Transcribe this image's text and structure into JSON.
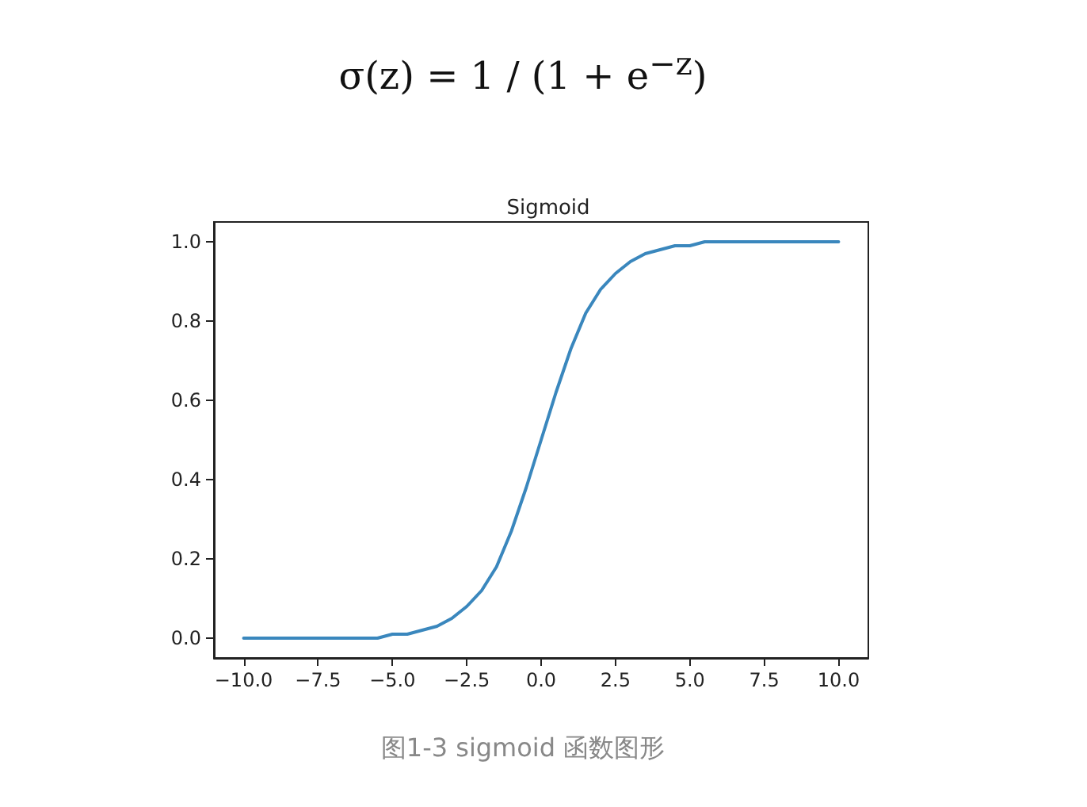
{
  "chart_data": {
    "type": "line",
    "title": "Sigmoid",
    "color": "#3a87bd",
    "marker": "none",
    "line_style": "solid",
    "grid": false,
    "x": [
      -10,
      -9.5,
      -9,
      -8.5,
      -8,
      -7.5,
      -7,
      -6.5,
      -6,
      -5.5,
      -5,
      -4.5,
      -4,
      -3.5,
      -3,
      -2.5,
      -2,
      -1.5,
      -1,
      -0.5,
      0,
      0.5,
      1,
      1.5,
      2,
      2.5,
      3,
      3.5,
      4,
      4.5,
      5,
      5.5,
      6,
      6.5,
      7,
      7.5,
      8,
      8.5,
      9,
      9.5,
      10
    ],
    "values": [
      0,
      0,
      0,
      0,
      0,
      0,
      0,
      0,
      0,
      0,
      0.01,
      0.01,
      0.02,
      0.03,
      0.05,
      0.08,
      0.12,
      0.18,
      0.27,
      0.38,
      0.5,
      0.62,
      0.73,
      0.82,
      0.88,
      0.92,
      0.95,
      0.97,
      0.98,
      0.99,
      0.99,
      1,
      1,
      1,
      1,
      1,
      1,
      1,
      1,
      1,
      1
    ],
    "xlim": [
      -11,
      11
    ],
    "xticks": [
      {
        "value": -10,
        "label": "−10.0"
      },
      {
        "value": -7.5,
        "label": "−7.5"
      },
      {
        "value": -5,
        "label": "−5.0"
      },
      {
        "value": -2.5,
        "label": "−2.5"
      },
      {
        "value": 0,
        "label": "0.0"
      },
      {
        "value": 2.5,
        "label": "2.5"
      },
      {
        "value": 5,
        "label": "5.0"
      },
      {
        "value": 7.5,
        "label": "7.5"
      },
      {
        "value": 10,
        "label": "10.0"
      }
    ],
    "ylim": [
      -0.05,
      1.05
    ],
    "yticks": [
      {
        "value": 0,
        "label": "0.0"
      },
      {
        "value": 0.2,
        "label": "0.2"
      },
      {
        "value": 0.4,
        "label": "0.4"
      },
      {
        "value": 0.6,
        "label": "0.6"
      },
      {
        "value": 0.8,
        "label": "0.8"
      },
      {
        "value": 1,
        "label": "1.0"
      }
    ],
    "annotations": [
      "σ(z) = 1 / (1 + e$^{−z}$)",
      "图1-3 sigmoid 函数图形"
    ]
  }
}
